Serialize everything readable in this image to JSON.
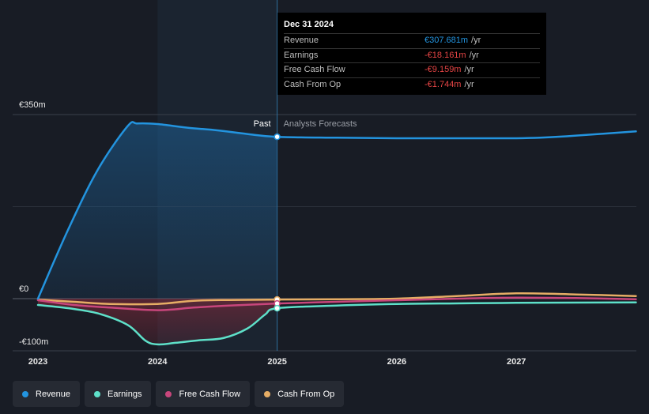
{
  "chart_data": {
    "type": "line",
    "currency": "€",
    "x_ticks": [
      "2023",
      "2024",
      "2025",
      "2026",
      "2027"
    ],
    "y_ticks": [
      {
        "value": 350,
        "label": "€350m"
      },
      {
        "value": 0,
        "label": "€0"
      },
      {
        "value": -100,
        "label": "-€100m"
      }
    ],
    "ylim": [
      -100,
      350
    ],
    "xlim": [
      2023,
      2028
    ],
    "divider_x": 2025,
    "past_label": "Past",
    "forecast_label": "Analysts Forecasts",
    "series": [
      {
        "name": "Revenue",
        "color": "#2394df",
        "points": [
          [
            2023.0,
            0
          ],
          [
            2023.25,
            130
          ],
          [
            2023.5,
            245
          ],
          [
            2023.75,
            328
          ],
          [
            2023.83,
            333
          ],
          [
            2024.0,
            332
          ],
          [
            2024.25,
            325
          ],
          [
            2024.5,
            320
          ],
          [
            2024.75,
            313
          ],
          [
            2025.0,
            307.7
          ],
          [
            2025.5,
            306
          ],
          [
            2026.0,
            305
          ],
          [
            2026.5,
            305
          ],
          [
            2027.0,
            305
          ],
          [
            2027.2,
            306
          ],
          [
            2027.5,
            310
          ],
          [
            2028.0,
            318
          ]
        ]
      },
      {
        "name": "Earnings",
        "color": "#5ee0c9",
        "points": [
          [
            2023.0,
            -12
          ],
          [
            2023.25,
            -18
          ],
          [
            2023.5,
            -28
          ],
          [
            2023.75,
            -50
          ],
          [
            2023.9,
            -80
          ],
          [
            2024.0,
            -87
          ],
          [
            2024.15,
            -84
          ],
          [
            2024.35,
            -79
          ],
          [
            2024.55,
            -75
          ],
          [
            2024.75,
            -57
          ],
          [
            2024.9,
            -30
          ],
          [
            2025.0,
            -18.2
          ],
          [
            2025.5,
            -13
          ],
          [
            2026.0,
            -10
          ],
          [
            2026.5,
            -9
          ],
          [
            2027.0,
            -8
          ],
          [
            2028.0,
            -7
          ]
        ]
      },
      {
        "name": "Free Cash Flow",
        "color": "#c8467c",
        "points": [
          [
            2023.0,
            -3
          ],
          [
            2023.3,
            -12
          ],
          [
            2023.6,
            -17
          ],
          [
            2024.0,
            -22
          ],
          [
            2024.3,
            -17
          ],
          [
            2024.6,
            -13
          ],
          [
            2025.0,
            -9.2
          ],
          [
            2025.5,
            -6
          ],
          [
            2026.0,
            -3
          ],
          [
            2026.5,
            0
          ],
          [
            2027.0,
            2
          ],
          [
            2027.5,
            1
          ],
          [
            2028.0,
            -1
          ]
        ]
      },
      {
        "name": "Cash From Op",
        "color": "#e6ad65",
        "points": [
          [
            2023.0,
            -2
          ],
          [
            2023.3,
            -6
          ],
          [
            2023.6,
            -10
          ],
          [
            2024.0,
            -10
          ],
          [
            2024.3,
            -4
          ],
          [
            2024.6,
            -2.5
          ],
          [
            2025.0,
            -1.7
          ],
          [
            2025.5,
            -1
          ],
          [
            2026.0,
            0
          ],
          [
            2026.5,
            5
          ],
          [
            2027.0,
            10
          ],
          [
            2027.5,
            8
          ],
          [
            2028.0,
            5
          ]
        ]
      }
    ],
    "tooltip": {
      "date": "Dec 31 2024",
      "unit": "/yr",
      "rows": [
        {
          "label": "Revenue",
          "value": "€307.681m",
          "color": "#2394df"
        },
        {
          "label": "Earnings",
          "value": "-€18.161m",
          "color": "#e64545"
        },
        {
          "label": "Free Cash Flow",
          "value": "-€9.159m",
          "color": "#e64545"
        },
        {
          "label": "Cash From Op",
          "value": "-€1.744m",
          "color": "#e64545"
        }
      ]
    },
    "legend": [
      "Revenue",
      "Earnings",
      "Free Cash Flow",
      "Cash From Op"
    ]
  }
}
